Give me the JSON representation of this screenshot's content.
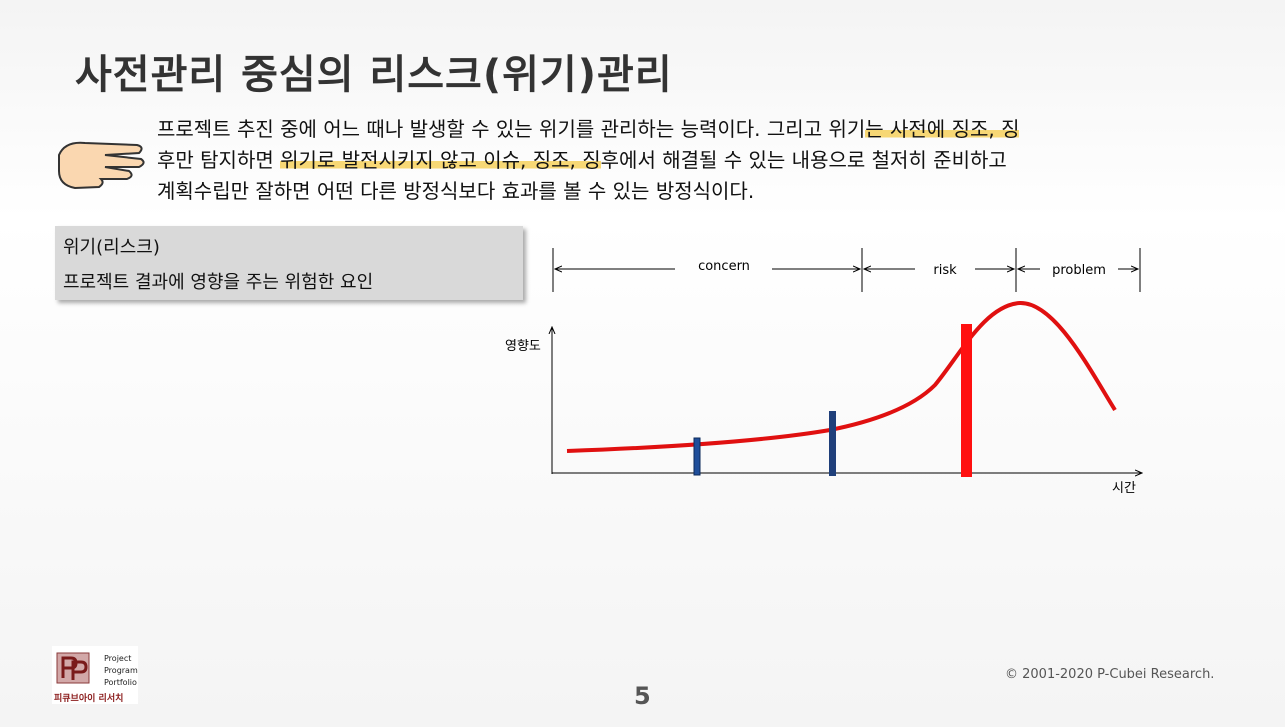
{
  "title": "사전관리 중심의 리스크(위기)관리",
  "intro": {
    "lines": [
      [
        "프로젝트 추진 중에 어느 때나 발생할 수 있는 위기를 관리하는 능력이다. 그리고 위기",
        "는 사전에 징조, 징"
      ],
      [
        "후만 탐지하면 ",
        "위기로 발전시키지 않고 이슈, 징조, 징",
        "후에서 해결될 수 있는 내용으로 철저히 준비하고"
      ],
      [
        "계획수립만 잘하면 어떤 다른 방정식보다 효과를 볼 수 있는 방정식이다."
      ]
    ]
  },
  "definition": {
    "term": "위기(리스크)",
    "text": "프로젝트 결과에 영향을 주는 위험한 요인"
  },
  "diagram": {
    "phases": [
      "concern",
      "risk",
      "problem"
    ],
    "y_axis_label": "영향도",
    "x_axis_label": "시간"
  },
  "footer": {
    "logo_lines": [
      "Project",
      "Program",
      "Portfolio"
    ],
    "logo_caption": "피큐브아이 리서치",
    "copyright": "© 2001-2020 P-Cubei Research.",
    "page_number": "5"
  }
}
